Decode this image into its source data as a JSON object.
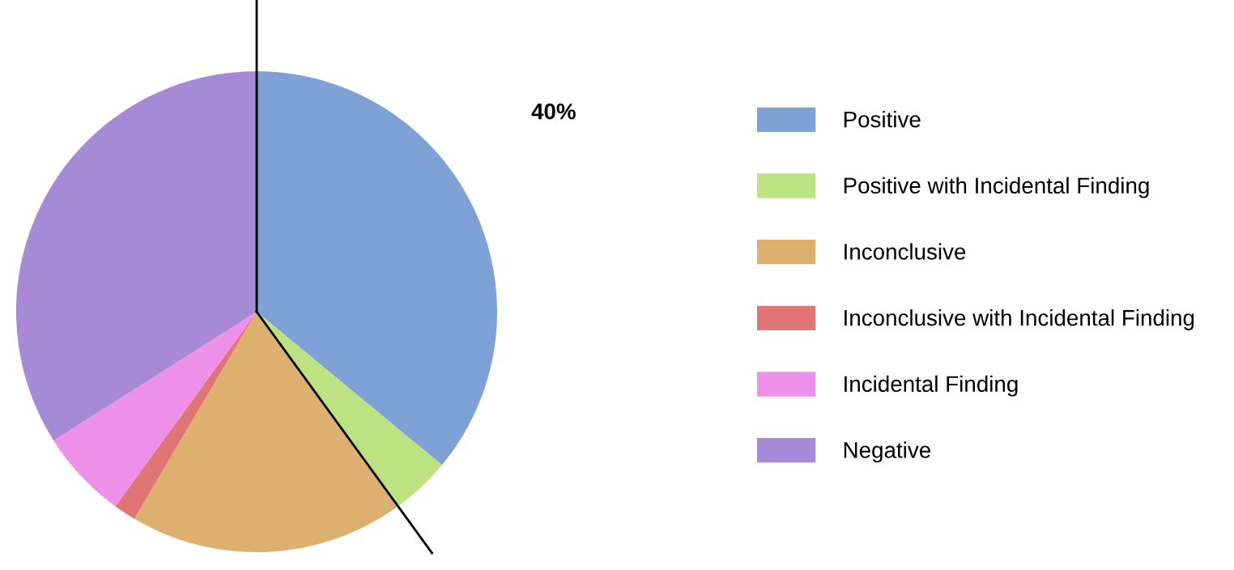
{
  "chart_data": {
    "type": "pie",
    "categories": [
      "Positive",
      "Positive with Incidental Finding",
      "Inconclusive",
      "Inconclusive with Incidental Finding",
      "Incidental Finding",
      "Negative"
    ],
    "values": [
      36,
      4,
      18.5,
      1.5,
      6,
      34
    ],
    "colors": [
      "#7ea1d6",
      "#bde282",
      "#deb06f",
      "#e07575",
      "#ee90ea",
      "#a68ad6"
    ],
    "annotations": [
      "40%"
    ],
    "legend": "right"
  }
}
